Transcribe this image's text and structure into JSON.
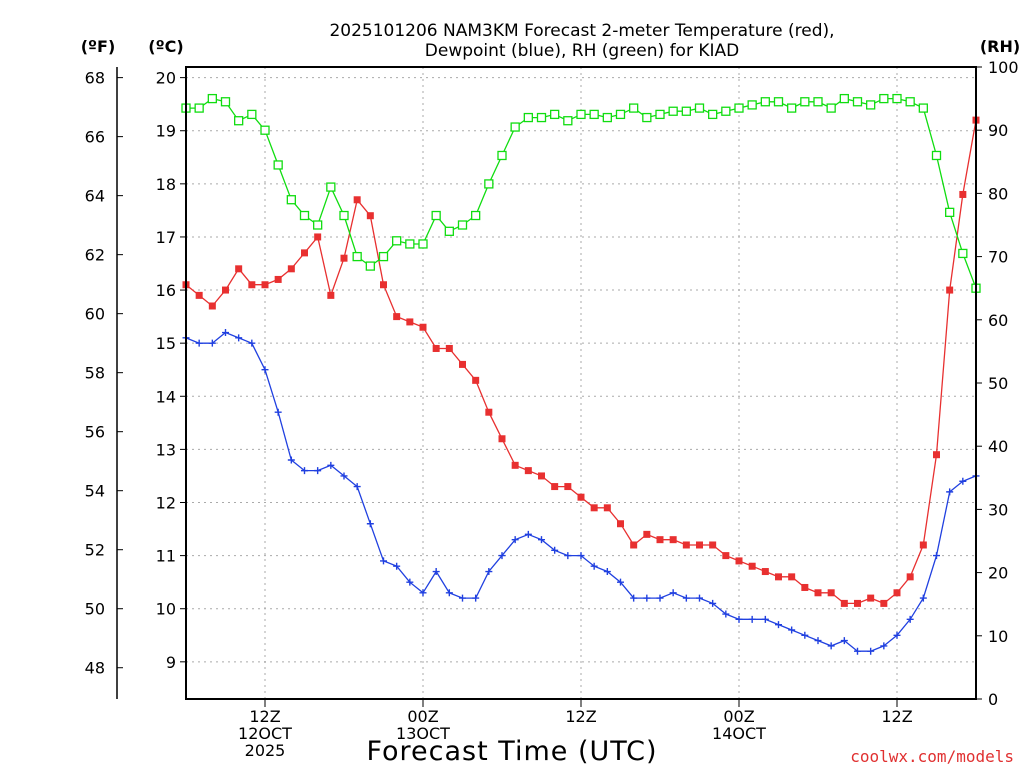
{
  "chart_data": {
    "type": "line",
    "title_lines": [
      "2025101206 NAM3KM Forecast 2-meter Temperature (red),",
      "Dewpoint (blue), RH (green) for KIAD"
    ],
    "xlabel": "Forecast Time (UTC)",
    "credit": "coolwx.com/models",
    "units": {
      "fahrenheit": "(ºF)",
      "celsius": "(ºC)",
      "rh": "(RH)"
    },
    "x_range_hours": [
      0,
      60
    ],
    "x_ticks": [
      {
        "hour": 6,
        "lines": [
          "12Z",
          "12OCT",
          "2025"
        ]
      },
      {
        "hour": 18,
        "lines": [
          "00Z",
          "13OCT"
        ]
      },
      {
        "hour": 30,
        "lines": [
          "12Z"
        ]
      },
      {
        "hour": 42,
        "lines": [
          "00Z",
          "14OCT"
        ]
      },
      {
        "hour": 54,
        "lines": [
          "12Z"
        ]
      }
    ],
    "celsius_axis": {
      "range": [
        8.3,
        20.2
      ],
      "ticks": [
        "9",
        "10",
        "11",
        "12",
        "13",
        "14",
        "15",
        "16",
        "17",
        "18",
        "19",
        "20"
      ]
    },
    "fahrenheit_axis": {
      "ticks": [
        "48",
        "50",
        "52",
        "54",
        "56",
        "58",
        "60",
        "62",
        "64",
        "66",
        "68"
      ]
    },
    "rh_axis": {
      "range": [
        0,
        100
      ],
      "ticks": [
        "0",
        "10",
        "20",
        "30",
        "40",
        "50",
        "60",
        "70",
        "80",
        "90",
        "100"
      ]
    },
    "series": [
      {
        "name": "Temperature",
        "color": "#e83030",
        "marker": "filled-square",
        "axis": "celsius",
        "values": [
          16.1,
          15.9,
          15.7,
          16.0,
          16.4,
          16.1,
          16.1,
          16.2,
          16.4,
          16.7,
          17.0,
          15.9,
          16.6,
          17.7,
          17.4,
          16.1,
          15.5,
          15.4,
          15.3,
          14.9,
          14.9,
          14.6,
          14.3,
          13.7,
          13.2,
          12.7,
          12.6,
          12.5,
          12.3,
          12.3,
          12.1,
          11.9,
          11.9,
          11.6,
          11.2,
          11.4,
          11.3,
          11.3,
          11.2,
          11.2,
          11.2,
          11.0,
          10.9,
          10.8,
          10.7,
          10.6,
          10.6,
          10.4,
          10.3,
          10.3,
          10.1,
          10.1,
          10.2,
          10.1,
          10.3,
          10.6,
          11.2,
          12.9,
          16.0,
          17.8,
          19.2
        ]
      },
      {
        "name": "Dewpoint",
        "color": "#2040e0",
        "marker": "plus",
        "axis": "celsius",
        "values": [
          15.1,
          15.0,
          15.0,
          15.2,
          15.1,
          15.0,
          14.5,
          13.7,
          12.8,
          12.6,
          12.6,
          12.7,
          12.5,
          12.3,
          11.6,
          10.9,
          10.8,
          10.5,
          10.3,
          10.7,
          10.3,
          10.2,
          10.2,
          10.7,
          11.0,
          11.3,
          11.4,
          11.3,
          11.1,
          11.0,
          11.0,
          10.8,
          10.7,
          10.5,
          10.2,
          10.2,
          10.2,
          10.3,
          10.2,
          10.2,
          10.1,
          9.9,
          9.8,
          9.8,
          9.8,
          9.7,
          9.6,
          9.5,
          9.4,
          9.3,
          9.4,
          9.2,
          9.2,
          9.3,
          9.5,
          9.8,
          10.2,
          11.0,
          12.2,
          12.4,
          12.5
        ]
      },
      {
        "name": "RH",
        "color": "#10dd10",
        "marker": "open-square",
        "axis": "rh",
        "values": [
          93.5,
          93.5,
          95,
          94.5,
          91.5,
          92.5,
          90,
          84.5,
          79,
          76.5,
          75,
          81,
          76.5,
          70,
          68.5,
          70,
          72.5,
          72,
          72,
          76.5,
          74,
          75,
          76.5,
          81.5,
          86,
          90.5,
          92,
          92,
          92.5,
          91.5,
          92.5,
          92.5,
          92,
          92.5,
          93.5,
          92,
          92.5,
          93,
          93,
          93.5,
          92.5,
          93,
          93.5,
          94,
          94.5,
          94.5,
          93.5,
          94.5,
          94.5,
          93.5,
          95,
          94.5,
          94,
          95,
          95,
          94.5,
          93.5,
          86,
          77,
          70.5,
          65
        ]
      }
    ]
  }
}
